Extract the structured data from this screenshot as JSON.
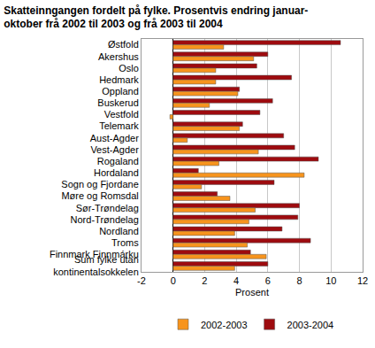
{
  "chart_data": {
    "type": "bar",
    "orientation": "horizontal",
    "title": "Skatteinngangen fordelt på fylke. Prosentvis endring januar-oktober frå 2002 til 2003 og frå 2003 til 2004",
    "x_label": "Prosent",
    "categories": [
      "Østfold",
      "Akershus",
      "Oslo",
      "Hedmark",
      "Oppland",
      "Buskerud",
      "Vestfold",
      "Telemark",
      "Aust-Agder",
      "Vest-Agder",
      "Rogaland",
      "Hordaland",
      "Sogn og Fjordane",
      "Møre og Romsdal",
      "Sør-Trøndelag",
      "Nord-Trøndelag",
      "Nordland",
      "Troms",
      "Finnmark Finnmárku",
      "Sum fylke utan kontinentalsokkelen"
    ],
    "series": [
      {
        "name": "2002-2003",
        "color": "#f7941d",
        "values": [
          3.2,
          5.1,
          2.7,
          2.7,
          4.1,
          2.3,
          -0.2,
          4.2,
          0.9,
          5.4,
          2.9,
          8.3,
          1.8,
          3.6,
          5.2,
          4.8,
          3.9,
          4.7,
          5.9,
          3.9
        ]
      },
      {
        "name": "2003-2004",
        "color": "#9e0b0f",
        "values": [
          10.6,
          6.0,
          5.3,
          7.5,
          4.2,
          6.3,
          5.5,
          4.4,
          7.0,
          7.7,
          9.2,
          1.6,
          6.4,
          2.8,
          8.0,
          7.9,
          6.9,
          8.7,
          4.9,
          6.0
        ]
      }
    ],
    "xlim": [
      -2,
      12
    ],
    "xticks": [
      -2,
      0,
      2,
      4,
      6,
      8,
      10,
      12
    ],
    "grid": true,
    "legend": "bottom"
  }
}
